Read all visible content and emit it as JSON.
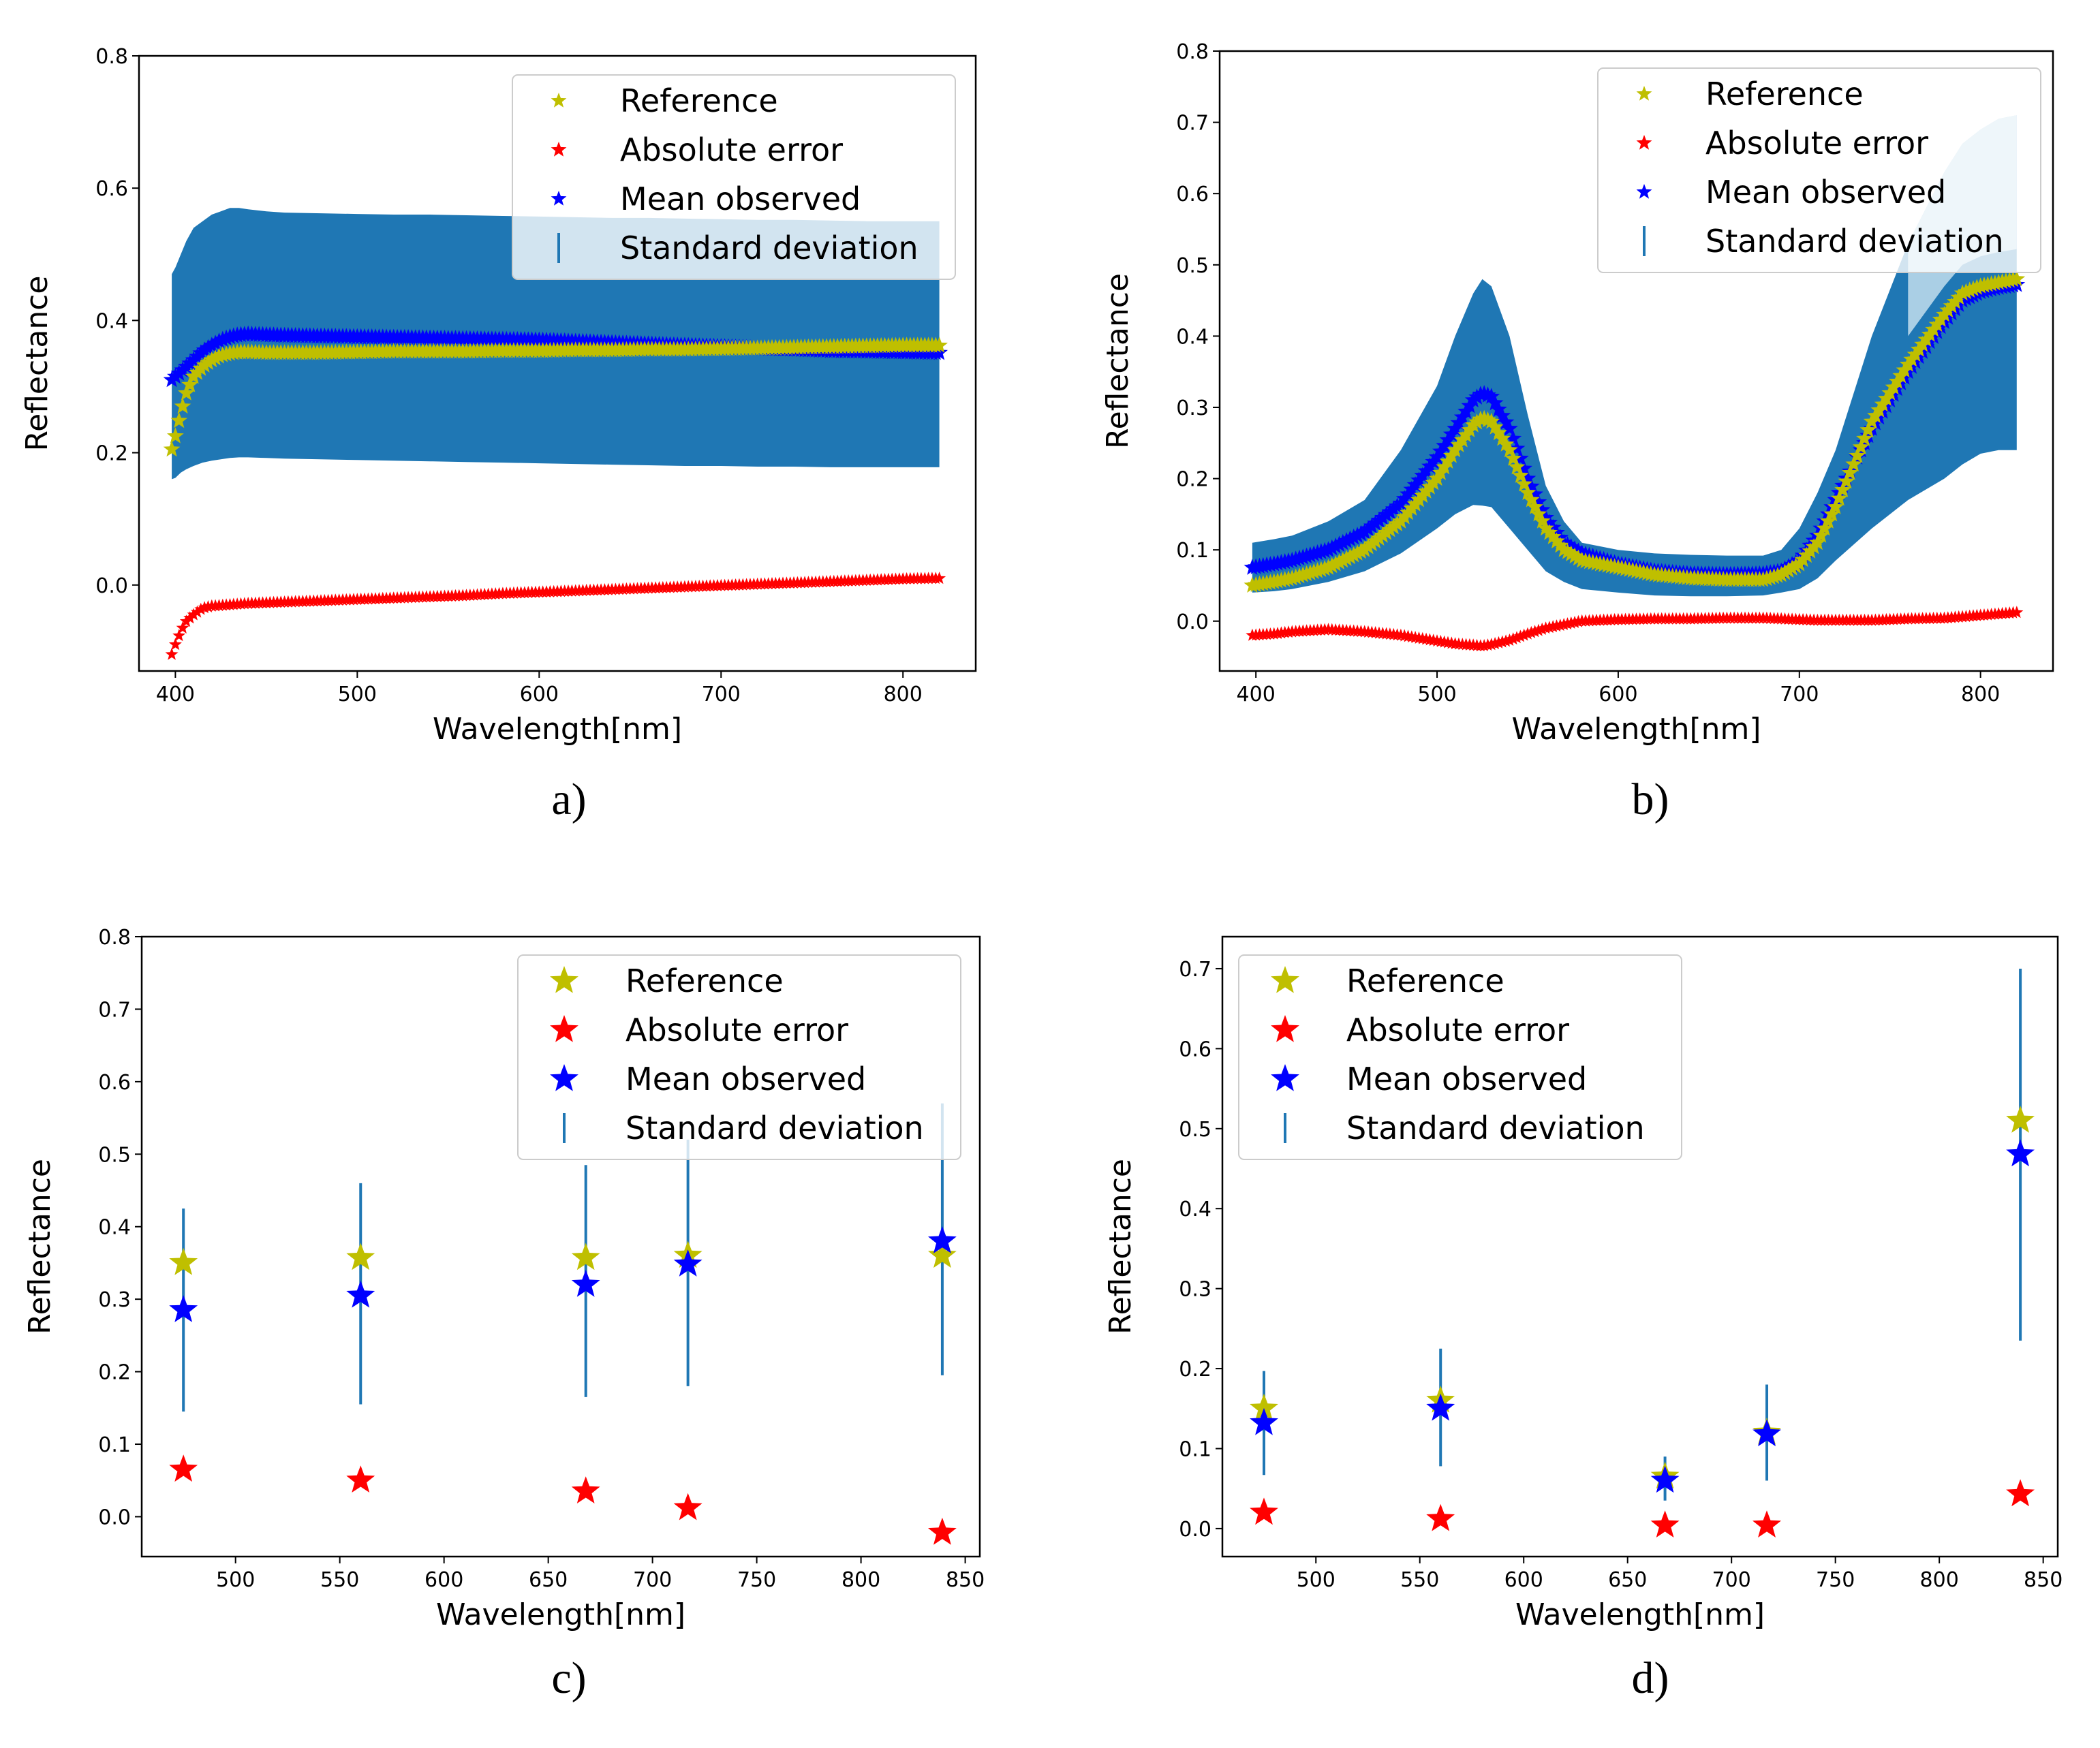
{
  "chart_data": [
    {
      "id": "a",
      "type": "scatter",
      "caption": "a)",
      "xlabel": "Wavelength[nm]",
      "ylabel": "Reflectance",
      "xlim": [
        380,
        840
      ],
      "ylim": [
        -0.13,
        0.8
      ],
      "xticks": [
        400,
        500,
        600,
        700,
        800
      ],
      "yticks": [
        0.0,
        0.2,
        0.4,
        0.6,
        0.8
      ],
      "tick_decimals": 1,
      "legend_location": "top-right",
      "marker": "small",
      "colors": {
        "reference": "#bfbf00",
        "error": "#ff0000",
        "mean": "#0000ff",
        "std": "#1f77b4"
      },
      "x": [
        398,
        400,
        403,
        406,
        410,
        415,
        420,
        425,
        430,
        435,
        440,
        450,
        460,
        480,
        500,
        520,
        540,
        560,
        580,
        600,
        620,
        640,
        660,
        680,
        700,
        720,
        740,
        760,
        780,
        800,
        820
      ],
      "series": [
        {
          "name": "Reference",
          "values": [
            0.205,
            0.225,
            0.26,
            0.29,
            0.315,
            0.33,
            0.34,
            0.347,
            0.35,
            0.352,
            0.352,
            0.351,
            0.351,
            0.351,
            0.352,
            0.353,
            0.353,
            0.353,
            0.354,
            0.354,
            0.355,
            0.355,
            0.356,
            0.356,
            0.357,
            0.358,
            0.359,
            0.36,
            0.361,
            0.362,
            0.362
          ]
        },
        {
          "name": "Absolute error",
          "values": [
            -0.105,
            -0.09,
            -0.07,
            -0.055,
            -0.045,
            -0.035,
            -0.032,
            -0.031,
            -0.03,
            -0.029,
            -0.028,
            -0.027,
            -0.026,
            -0.024,
            -0.022,
            -0.02,
            -0.018,
            -0.016,
            -0.013,
            -0.011,
            -0.009,
            -0.007,
            -0.005,
            -0.003,
            -0.001,
            0.001,
            0.003,
            0.005,
            0.007,
            0.009,
            0.01
          ]
        },
        {
          "name": "Mean observed",
          "values": [
            0.31,
            0.315,
            0.322,
            0.33,
            0.34,
            0.353,
            0.362,
            0.37,
            0.375,
            0.378,
            0.379,
            0.378,
            0.377,
            0.376,
            0.375,
            0.374,
            0.373,
            0.372,
            0.371,
            0.37,
            0.368,
            0.366,
            0.364,
            0.362,
            0.36,
            0.358,
            0.356,
            0.354,
            0.353,
            0.352,
            0.351
          ]
        }
      ],
      "std_band": {
        "name": "Standard deviation",
        "upper": [
          0.47,
          0.48,
          0.5,
          0.52,
          0.54,
          0.55,
          0.56,
          0.565,
          0.57,
          0.57,
          0.568,
          0.565,
          0.563,
          0.562,
          0.561,
          0.56,
          0.56,
          0.559,
          0.558,
          0.557,
          0.556,
          0.555,
          0.555,
          0.554,
          0.553,
          0.552,
          0.552,
          0.551,
          0.55,
          0.55,
          0.55
        ],
        "lower": [
          0.16,
          0.162,
          0.17,
          0.175,
          0.18,
          0.185,
          0.188,
          0.19,
          0.192,
          0.193,
          0.193,
          0.192,
          0.191,
          0.19,
          0.189,
          0.188,
          0.187,
          0.186,
          0.185,
          0.184,
          0.183,
          0.182,
          0.181,
          0.18,
          0.18,
          0.179,
          0.179,
          0.178,
          0.178,
          0.178,
          0.178
        ]
      },
      "legend": [
        "Reference",
        "Absolute error",
        "Mean observed",
        "Standard deviation"
      ]
    },
    {
      "id": "b",
      "type": "scatter",
      "caption": "b)",
      "xlabel": "Wavelength[nm]",
      "ylabel": "Reflectance",
      "xlim": [
        380,
        840
      ],
      "ylim": [
        -0.07,
        0.8
      ],
      "xticks": [
        400,
        500,
        600,
        700,
        800
      ],
      "yticks": [
        0.0,
        0.1,
        0.2,
        0.3,
        0.4,
        0.5,
        0.6,
        0.7,
        0.8
      ],
      "tick_decimals": 1,
      "legend_location": "top-right",
      "marker": "small",
      "colors": {
        "reference": "#bfbf00",
        "error": "#ff0000",
        "mean": "#0000ff",
        "std": "#1f77b4"
      },
      "x": [
        398,
        410,
        420,
        440,
        460,
        480,
        500,
        510,
        520,
        525,
        530,
        540,
        550,
        560,
        570,
        580,
        600,
        620,
        640,
        660,
        680,
        690,
        700,
        710,
        720,
        740,
        760,
        780,
        790,
        800,
        810,
        820
      ],
      "series": [
        {
          "name": "Reference",
          "values": [
            0.05,
            0.055,
            0.06,
            0.075,
            0.1,
            0.14,
            0.2,
            0.24,
            0.275,
            0.285,
            0.28,
            0.24,
            0.18,
            0.13,
            0.1,
            0.085,
            0.075,
            0.065,
            0.06,
            0.058,
            0.058,
            0.065,
            0.08,
            0.11,
            0.16,
            0.28,
            0.36,
            0.43,
            0.46,
            0.47,
            0.475,
            0.48
          ]
        },
        {
          "name": "Absolute error",
          "values": [
            -0.02,
            -0.018,
            -0.015,
            -0.012,
            -0.015,
            -0.02,
            -0.028,
            -0.032,
            -0.034,
            -0.035,
            -0.033,
            -0.027,
            -0.018,
            -0.01,
            -0.005,
            0.0,
            0.002,
            0.003,
            0.003,
            0.004,
            0.004,
            0.003,
            0.002,
            0.001,
            0.001,
            0.001,
            0.003,
            0.004,
            0.006,
            0.008,
            0.01,
            0.012
          ]
        },
        {
          "name": "Mean observed",
          "values": [
            0.075,
            0.08,
            0.085,
            0.1,
            0.125,
            0.165,
            0.23,
            0.27,
            0.31,
            0.32,
            0.315,
            0.27,
            0.2,
            0.145,
            0.11,
            0.095,
            0.08,
            0.07,
            0.066,
            0.065,
            0.066,
            0.07,
            0.085,
            0.12,
            0.17,
            0.27,
            0.35,
            0.42,
            0.45,
            0.462,
            0.468,
            0.472
          ]
        }
      ],
      "std_band": {
        "name": "Standard deviation",
        "upper": [
          0.11,
          0.115,
          0.12,
          0.14,
          0.17,
          0.24,
          0.33,
          0.4,
          0.46,
          0.48,
          0.47,
          0.4,
          0.29,
          0.19,
          0.14,
          0.11,
          0.1,
          0.095,
          0.093,
          0.092,
          0.092,
          0.1,
          0.13,
          0.18,
          0.24,
          0.4,
          0.53,
          0.63,
          0.67,
          0.69,
          0.705,
          0.71
        ],
        "lower": [
          0.04,
          0.042,
          0.045,
          0.055,
          0.07,
          0.095,
          0.13,
          0.15,
          0.163,
          0.162,
          0.16,
          0.13,
          0.1,
          0.07,
          0.055,
          0.045,
          0.04,
          0.036,
          0.035,
          0.035,
          0.036,
          0.04,
          0.045,
          0.06,
          0.085,
          0.13,
          0.17,
          0.2,
          0.22,
          0.235,
          0.24,
          0.24
        ]
      },
      "legend": [
        "Reference",
        "Absolute error",
        "Mean observed",
        "Standard deviation"
      ]
    },
    {
      "id": "c",
      "type": "scatter",
      "caption": "c)",
      "xlabel": "Wavelength[nm]",
      "ylabel": "Reflectance",
      "xlim": [
        455,
        857
      ],
      "ylim": [
        -0.055,
        0.8
      ],
      "xticks": [
        500,
        550,
        600,
        650,
        700,
        750,
        800,
        850
      ],
      "yticks": [
        0.0,
        0.1,
        0.2,
        0.3,
        0.4,
        0.5,
        0.6,
        0.7,
        0.8
      ],
      "tick_decimals": 1,
      "legend_location": "top-right",
      "marker": "large",
      "colors": {
        "reference": "#bfbf00",
        "error": "#ff0000",
        "mean": "#0000ff",
        "std": "#1f77b4"
      },
      "x": [
        475,
        560,
        668,
        717,
        839
      ],
      "series": [
        {
          "name": "Reference",
          "values": [
            0.35,
            0.357,
            0.357,
            0.36,
            0.36
          ]
        },
        {
          "name": "Absolute error",
          "values": [
            0.065,
            0.05,
            0.035,
            0.012,
            -0.022
          ]
        },
        {
          "name": "Mean observed",
          "values": [
            0.285,
            0.305,
            0.32,
            0.348,
            0.38
          ]
        }
      ],
      "error_bars": {
        "name": "Standard deviation",
        "upper": [
          0.425,
          0.46,
          0.485,
          0.52,
          0.57
        ],
        "lower": [
          0.145,
          0.155,
          0.165,
          0.18,
          0.195
        ]
      },
      "legend": [
        "Reference",
        "Absolute error",
        "Mean observed",
        "Standard deviation"
      ]
    },
    {
      "id": "d",
      "type": "scatter",
      "caption": "d)",
      "xlabel": "Wavelength[nm]",
      "ylabel": "Reflectance",
      "xlim": [
        455,
        857
      ],
      "ylim": [
        -0.035,
        0.74
      ],
      "xticks": [
        500,
        550,
        600,
        650,
        700,
        750,
        800,
        850
      ],
      "yticks": [
        0.0,
        0.1,
        0.2,
        0.3,
        0.4,
        0.5,
        0.6,
        0.7
      ],
      "tick_decimals": 1,
      "legend_location": "top-left",
      "marker": "large",
      "colors": {
        "reference": "#bfbf00",
        "error": "#ff0000",
        "mean": "#0000ff",
        "std": "#1f77b4"
      },
      "x": [
        475,
        560,
        668,
        717,
        839
      ],
      "series": [
        {
          "name": "Reference",
          "values": [
            0.15,
            0.16,
            0.065,
            0.12,
            0.51
          ]
        },
        {
          "name": "Absolute error",
          "values": [
            0.02,
            0.012,
            0.004,
            0.004,
            0.043
          ]
        },
        {
          "name": "Mean observed",
          "values": [
            0.132,
            0.15,
            0.06,
            0.118,
            0.468
          ]
        }
      ],
      "error_bars": {
        "name": "Standard deviation",
        "upper": [
          0.197,
          0.225,
          0.09,
          0.18,
          0.7
        ],
        "lower": [
          0.067,
          0.078,
          0.035,
          0.06,
          0.235
        ]
      },
      "legend": [
        "Reference",
        "Absolute error",
        "Mean observed",
        "Standard deviation"
      ]
    }
  ]
}
